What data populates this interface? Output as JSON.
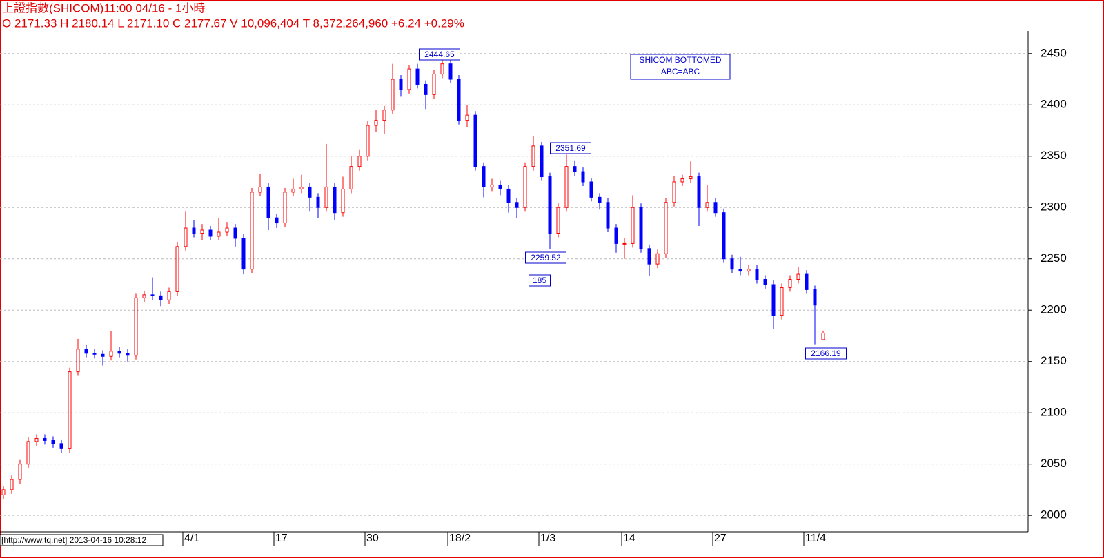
{
  "chart_data": {
    "type": "candlestick",
    "title": "上證指數(SHICOM)11:00 04/16   - 1小時",
    "subtitle": "O 2171.33 H 2180.14 L 2171.10 C 2177.67 V 10,096,404 T 8,372,264,960  +6.24  +0.29%",
    "footer": "[http://www.tq.net] 2013-04-16 10:28:12",
    "up_color": "#ff0000",
    "down_color": "#0000ff",
    "grid": true,
    "categories": [
      null,
      null,
      null,
      null,
      null,
      null,
      null,
      null,
      null,
      null,
      null,
      null,
      null,
      null,
      null,
      null,
      null,
      null,
      null,
      null,
      null,
      null,
      "4/1",
      null,
      null,
      null,
      null,
      null,
      null,
      null,
      null,
      null,
      null,
      "17",
      null,
      null,
      null,
      null,
      null,
      null,
      null,
      null,
      null,
      null,
      "30",
      null,
      null,
      null,
      null,
      null,
      null,
      null,
      null,
      null,
      "18/2",
      null,
      null,
      null,
      null,
      null,
      null,
      null,
      null,
      null,
      null,
      "1/3",
      null,
      null,
      null,
      null,
      null,
      null,
      null,
      null,
      null,
      "14",
      null,
      null,
      null,
      null,
      null,
      null,
      null,
      null,
      null,
      null,
      "27",
      null,
      null,
      null,
      null,
      null,
      null,
      null,
      null,
      null,
      null,
      "11/4",
      null,
      null
    ],
    "open": [
      2020,
      2025,
      2035,
      2050,
      2072,
      2075,
      2073,
      2070,
      2065,
      2140,
      2162,
      2158,
      2157,
      2155,
      2160,
      2158,
      2156,
      2212,
      2215,
      2214,
      2210,
      2218,
      2262,
      2280,
      2275,
      2278,
      2272,
      2276,
      2280,
      2270,
      2240,
      2315,
      2320,
      2290,
      2285,
      2315,
      2318,
      2320,
      2310,
      2300,
      2320,
      2295,
      2318,
      2340,
      2350,
      2380,
      2385,
      2395,
      2425,
      2415,
      2435,
      2420,
      2410,
      2430,
      2440,
      2425,
      2385,
      2390,
      2340,
      2320,
      2322,
      2318,
      2305,
      2300,
      2340,
      2360,
      2330,
      2275,
      2300,
      2340,
      2335,
      2325,
      2310,
      2305,
      2280,
      2265,
      2265,
      2300,
      2260,
      2245,
      2255,
      2305,
      2325,
      2328,
      2330,
      2300,
      2305,
      2295,
      2250,
      2240,
      2238,
      2240,
      2230,
      2225,
      2195,
      2222,
      2230,
      2235,
      2220,
      2171.33
    ],
    "high": [
      2029,
      2039,
      2054,
      2076,
      2079,
      2079,
      2077,
      2074,
      2144,
      2172,
      2166,
      2162,
      2161,
      2180,
      2164,
      2162,
      2216,
      2219,
      2232,
      2218,
      2222,
      2266,
      2296,
      2288,
      2284,
      2282,
      2290,
      2286,
      2284,
      2274,
      2319,
      2333,
      2324,
      2294,
      2319,
      2328,
      2332,
      2324,
      2314,
      2362,
      2324,
      2330,
      2350,
      2356,
      2384,
      2395,
      2399,
      2440,
      2429,
      2439,
      2440,
      2424,
      2434,
      2444.65,
      2444,
      2429,
      2400,
      2394,
      2344,
      2328,
      2326,
      2322,
      2309,
      2344,
      2370,
      2364,
      2334,
      2304,
      2351.69,
      2346,
      2339,
      2329,
      2314,
      2309,
      2284,
      2270,
      2312,
      2304,
      2264,
      2259,
      2309,
      2331,
      2332,
      2345,
      2334,
      2322,
      2309,
      2299,
      2254,
      2252,
      2244,
      2244,
      2234,
      2229,
      2226,
      2234,
      2242,
      2239,
      2224,
      2180.14
    ],
    "low": [
      2016,
      2021,
      2031,
      2046,
      2068,
      2069,
      2066,
      2061,
      2061,
      2136,
      2154,
      2153,
      2146,
      2151,
      2154,
      2150,
      2152,
      2208,
      2210,
      2204,
      2206,
      2214,
      2258,
      2271,
      2268,
      2268,
      2268,
      2272,
      2262,
      2235,
      2236,
      2311,
      2278,
      2280,
      2281,
      2311,
      2314,
      2296,
      2290,
      2296,
      2288,
      2291,
      2314,
      2336,
      2346,
      2374,
      2372,
      2391,
      2408,
      2411,
      2416,
      2396,
      2406,
      2426,
      2421,
      2381,
      2378,
      2336,
      2310,
      2316,
      2312,
      2295,
      2290,
      2296,
      2336,
      2326,
      2259.52,
      2271,
      2296,
      2331,
      2321,
      2306,
      2298,
      2276,
      2256,
      2250,
      2261,
      2256,
      2233,
      2241,
      2251,
      2301,
      2321,
      2324,
      2282,
      2296,
      2291,
      2246,
      2236,
      2234,
      2234,
      2226,
      2221,
      2182,
      2191,
      2218,
      2226,
      2216,
      2166.19,
      2171.1
    ],
    "close": [
      2025,
      2035,
      2050,
      2072,
      2075,
      2073,
      2070,
      2065,
      2140,
      2162,
      2158,
      2157,
      2155,
      2160,
      2158,
      2156,
      2212,
      2215,
      2214,
      2210,
      2218,
      2262,
      2280,
      2275,
      2278,
      2272,
      2276,
      2280,
      2270,
      2240,
      2315,
      2320,
      2290,
      2285,
      2315,
      2318,
      2320,
      2310,
      2300,
      2320,
      2295,
      2318,
      2340,
      2350,
      2380,
      2385,
      2395,
      2425,
      2415,
      2435,
      2420,
      2410,
      2430,
      2440,
      2425,
      2385,
      2390,
      2340,
      2320,
      2322,
      2318,
      2305,
      2300,
      2340,
      2360,
      2330,
      2275,
      2300,
      2340,
      2335,
      2325,
      2310,
      2305,
      2280,
      2265,
      2265,
      2300,
      2260,
      2245,
      2255,
      2305,
      2325,
      2328,
      2330,
      2300,
      2305,
      2295,
      2250,
      2240,
      2238,
      2240,
      2230,
      2225,
      2195,
      2222,
      2230,
      2235,
      2220,
      2205,
      2177.67
    ],
    "ylim": [
      1984,
      2472
    ],
    "yticks": [
      2000,
      2050,
      2100,
      2150,
      2200,
      2250,
      2300,
      2350,
      2400,
      2450
    ],
    "annotations": [
      "2444.65",
      "2351.69",
      "2259.52",
      "185",
      "2166.19",
      "SHICOM BOTTOMED",
      "ABC=ABC"
    ]
  }
}
